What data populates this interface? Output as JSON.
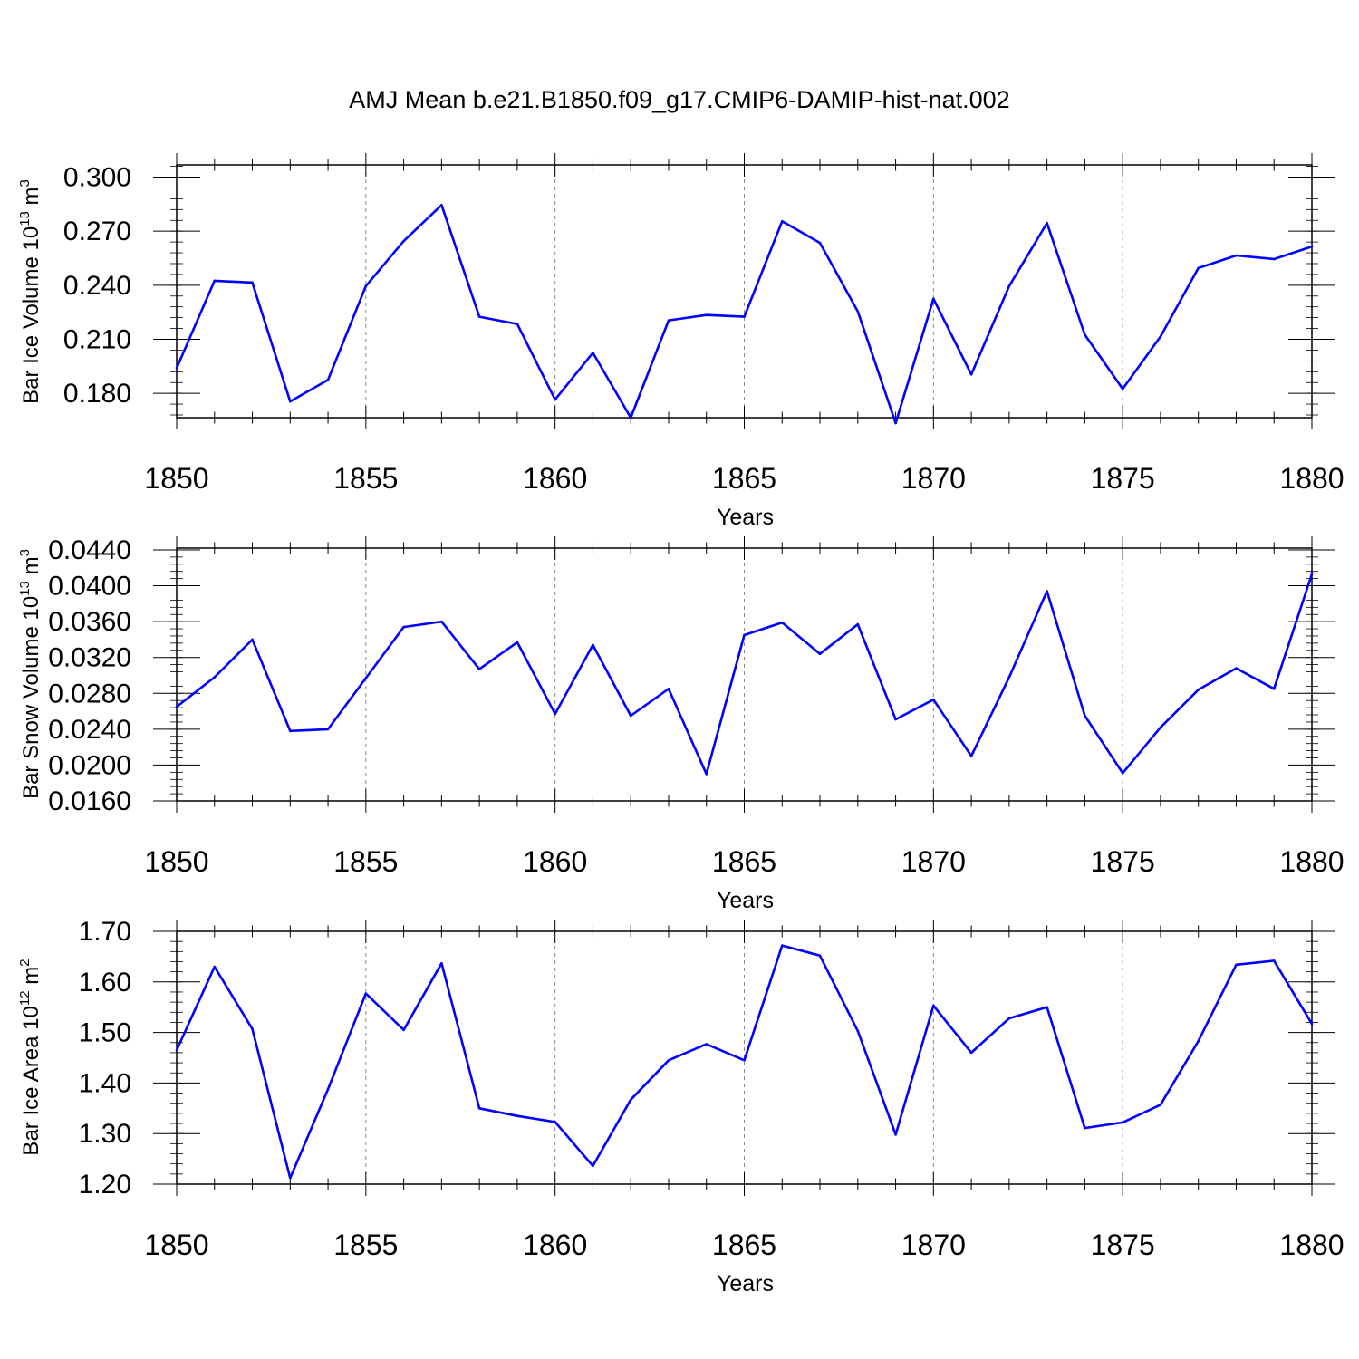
{
  "title": "AMJ Mean b.e21.B1850.f09_g17.CMIP6-DAMIP-hist-nat.002",
  "chart_data": [
    {
      "type": "line",
      "ylabel": "Bar Ice Volume 10",
      "ylabel_exp": "13",
      "ylabel_unit": " m",
      "ylabel_unit_exp": "3",
      "xlabel": "Years",
      "xlim": [
        1850,
        1880
      ],
      "ylim": [
        0.1665,
        0.3068
      ],
      "yticks": [
        0.18,
        0.21,
        0.24,
        0.27,
        0.3
      ],
      "ytick_labels": [
        "0.180",
        "0.210",
        "0.240",
        "0.270",
        "0.300"
      ],
      "yminor": 0.006,
      "xticks": [
        1850,
        1855,
        1860,
        1865,
        1870,
        1875,
        1880
      ],
      "xtick_labels": [
        "1850",
        "1855",
        "1860",
        "1865",
        "1870",
        "1875",
        "1880"
      ],
      "line_color": "#0000ff",
      "x": [
        1850,
        1851,
        1852,
        1853,
        1854,
        1855,
        1856,
        1857,
        1858,
        1859,
        1860,
        1861,
        1862,
        1863,
        1864,
        1865,
        1866,
        1867,
        1868,
        1869,
        1870,
        1871,
        1872,
        1873,
        1874,
        1875,
        1876,
        1877,
        1878,
        1879,
        1880
      ],
      "values": [
        0.194,
        0.2425,
        0.2415,
        0.1755,
        0.1875,
        0.2395,
        0.2645,
        0.2845,
        0.2225,
        0.2185,
        0.1765,
        0.2025,
        0.1665,
        0.2205,
        0.2235,
        0.2225,
        0.2755,
        0.2635,
        0.2255,
        0.1635,
        0.2325,
        0.1905,
        0.2395,
        0.2745,
        0.2125,
        0.1825,
        0.2115,
        0.2495,
        0.2565,
        0.2545,
        0.2615
      ]
    },
    {
      "type": "line",
      "ylabel": "Bar Snow Volume 10",
      "ylabel_exp": "13",
      "ylabel_unit": " m",
      "ylabel_unit_exp": "3",
      "xlabel": "Years",
      "xlim": [
        1850,
        1880
      ],
      "ylim": [
        0.016,
        0.0442
      ],
      "yticks": [
        0.016,
        0.02,
        0.024,
        0.028,
        0.032,
        0.036,
        0.04,
        0.044
      ],
      "ytick_labels": [
        "0.0160",
        "0.0200",
        "0.0240",
        "0.0280",
        "0.0320",
        "0.0360",
        "0.0400",
        "0.0440"
      ],
      "yminor": 0.0008,
      "xticks": [
        1850,
        1855,
        1860,
        1865,
        1870,
        1875,
        1880
      ],
      "xtick_labels": [
        "1850",
        "1855",
        "1860",
        "1865",
        "1870",
        "1875",
        "1880"
      ],
      "line_color": "#0000ff",
      "x": [
        1850,
        1851,
        1852,
        1853,
        1854,
        1855,
        1856,
        1857,
        1858,
        1859,
        1860,
        1861,
        1862,
        1863,
        1864,
        1865,
        1866,
        1867,
        1868,
        1869,
        1870,
        1871,
        1872,
        1873,
        1874,
        1875,
        1876,
        1877,
        1878,
        1879,
        1880
      ],
      "values": [
        0.0265,
        0.0298,
        0.034,
        0.0238,
        0.024,
        0.0297,
        0.0354,
        0.036,
        0.0307,
        0.0337,
        0.0257,
        0.0334,
        0.0255,
        0.0285,
        0.019,
        0.0345,
        0.0359,
        0.0324,
        0.0357,
        0.0251,
        0.0273,
        0.021,
        0.0298,
        0.0394,
        0.0255,
        0.0191,
        0.0242,
        0.0284,
        0.0308,
        0.0285,
        0.0413
      ]
    },
    {
      "type": "line",
      "ylabel": "Bar Ice Area 10",
      "ylabel_exp": "12",
      "ylabel_unit": " m",
      "ylabel_unit_exp": "2",
      "xlabel": "Years",
      "xlim": [
        1850,
        1880
      ],
      "ylim": [
        1.2,
        1.7
      ],
      "yticks": [
        1.2,
        1.3,
        1.4,
        1.5,
        1.6,
        1.7
      ],
      "ytick_labels": [
        "1.20",
        "1.30",
        "1.40",
        "1.50",
        "1.60",
        "1.70"
      ],
      "yminor": 0.02,
      "xticks": [
        1850,
        1855,
        1860,
        1865,
        1870,
        1875,
        1880
      ],
      "xtick_labels": [
        "1850",
        "1855",
        "1860",
        "1865",
        "1870",
        "1875",
        "1880"
      ],
      "line_color": "#0000ff",
      "x": [
        1850,
        1851,
        1852,
        1853,
        1854,
        1855,
        1856,
        1857,
        1858,
        1859,
        1860,
        1861,
        1862,
        1863,
        1864,
        1865,
        1866,
        1867,
        1868,
        1869,
        1870,
        1871,
        1872,
        1873,
        1874,
        1875,
        1876,
        1877,
        1878,
        1879,
        1880
      ],
      "values": [
        1.465,
        1.63,
        1.507,
        1.212,
        1.388,
        1.577,
        1.505,
        1.637,
        1.35,
        1.335,
        1.323,
        1.236,
        1.367,
        1.445,
        1.477,
        1.445,
        1.672,
        1.652,
        1.503,
        1.298,
        1.553,
        1.46,
        1.528,
        1.55,
        1.311,
        1.322,
        1.357,
        1.483,
        1.634,
        1.642,
        1.517
      ]
    }
  ]
}
